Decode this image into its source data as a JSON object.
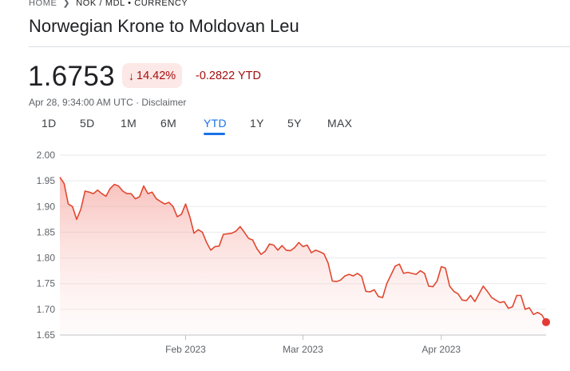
{
  "breadcrumb": {
    "home": "HOME",
    "pair": "NOK / MDL • CURRENCY"
  },
  "title": "Norwegian Krone to Moldovan Leu",
  "price": "1.6753",
  "change_percent": "14.42%",
  "change_ytd": "-0.2822 YTD",
  "timestamp": "Apr 28, 9:34:00 AM UTC",
  "disclaimer": "Disclaimer",
  "tabs": [
    {
      "label": "1D",
      "active": false
    },
    {
      "label": "5D",
      "active": false
    },
    {
      "label": "1M",
      "active": false
    },
    {
      "label": "6M",
      "active": false
    },
    {
      "label": "YTD",
      "active": true
    },
    {
      "label": "1Y",
      "active": false
    },
    {
      "label": "5Y",
      "active": false
    },
    {
      "label": "MAX",
      "active": false
    }
  ],
  "colors": {
    "down": "#a50e0e",
    "line": "#e2472f",
    "accent": "#1a73e8"
  },
  "chart_data": {
    "type": "area",
    "ylim": [
      1.65,
      2.0
    ],
    "yticks": [
      "2.00",
      "1.95",
      "1.90",
      "1.85",
      "1.80",
      "1.75",
      "1.70",
      "1.65"
    ],
    "xticks": [
      {
        "label": "Feb 2023",
        "date": "2023-02-01"
      },
      {
        "label": "Mar 2023",
        "date": "2023-03-01"
      },
      {
        "label": "Apr 2023",
        "date": "2023-04-03"
      }
    ],
    "xlim": [
      "2023-01-02",
      "2023-04-28"
    ],
    "series": [
      {
        "points": [
          [
            "2023-01-02",
            1.957
          ],
          [
            "2023-01-03",
            1.945
          ],
          [
            "2023-01-04",
            1.905
          ],
          [
            "2023-01-05",
            1.9
          ],
          [
            "2023-01-06",
            1.875
          ],
          [
            "2023-01-07",
            1.895
          ],
          [
            "2023-01-08",
            1.93
          ],
          [
            "2023-01-09",
            1.928
          ],
          [
            "2023-01-10",
            1.925
          ],
          [
            "2023-01-11",
            1.932
          ],
          [
            "2023-01-12",
            1.925
          ],
          [
            "2023-01-13",
            1.92
          ],
          [
            "2023-01-14",
            1.935
          ],
          [
            "2023-01-15",
            1.943
          ],
          [
            "2023-01-16",
            1.94
          ],
          [
            "2023-01-17",
            1.93
          ],
          [
            "2023-01-18",
            1.925
          ],
          [
            "2023-01-19",
            1.925
          ],
          [
            "2023-01-20",
            1.915
          ],
          [
            "2023-01-21",
            1.919
          ],
          [
            "2023-01-22",
            1.94
          ],
          [
            "2023-01-23",
            1.925
          ],
          [
            "2023-01-24",
            1.928
          ],
          [
            "2023-01-25",
            1.915
          ],
          [
            "2023-01-26",
            1.91
          ],
          [
            "2023-01-27",
            1.905
          ],
          [
            "2023-01-28",
            1.908
          ],
          [
            "2023-01-29",
            1.9
          ],
          [
            "2023-01-30",
            1.88
          ],
          [
            "2023-01-31",
            1.885
          ],
          [
            "2023-02-01",
            1.905
          ],
          [
            "2023-02-02",
            1.88
          ],
          [
            "2023-02-03",
            1.848
          ],
          [
            "2023-02-04",
            1.855
          ],
          [
            "2023-02-05",
            1.85
          ],
          [
            "2023-02-06",
            1.83
          ],
          [
            "2023-02-07",
            1.815
          ],
          [
            "2023-02-08",
            1.822
          ],
          [
            "2023-02-09",
            1.823
          ],
          [
            "2023-02-10",
            1.846
          ],
          [
            "2023-02-11",
            1.847
          ],
          [
            "2023-02-12",
            1.848
          ],
          [
            "2023-02-13",
            1.852
          ],
          [
            "2023-02-14",
            1.861
          ],
          [
            "2023-02-15",
            1.85
          ],
          [
            "2023-02-16",
            1.838
          ],
          [
            "2023-02-17",
            1.835
          ],
          [
            "2023-02-18",
            1.818
          ],
          [
            "2023-02-19",
            1.807
          ],
          [
            "2023-02-20",
            1.813
          ],
          [
            "2023-02-21",
            1.827
          ],
          [
            "2023-02-22",
            1.825
          ],
          [
            "2023-02-23",
            1.815
          ],
          [
            "2023-02-24",
            1.824
          ],
          [
            "2023-02-25",
            1.815
          ],
          [
            "2023-02-26",
            1.814
          ],
          [
            "2023-02-27",
            1.82
          ],
          [
            "2023-02-28",
            1.83
          ],
          [
            "2023-03-01",
            1.822
          ],
          [
            "2023-03-02",
            1.825
          ],
          [
            "2023-03-03",
            1.81
          ],
          [
            "2023-03-04",
            1.815
          ],
          [
            "2023-03-05",
            1.812
          ],
          [
            "2023-03-06",
            1.808
          ],
          [
            "2023-03-07",
            1.79
          ],
          [
            "2023-03-08",
            1.755
          ],
          [
            "2023-03-09",
            1.754
          ],
          [
            "2023-03-10",
            1.757
          ],
          [
            "2023-03-11",
            1.765
          ],
          [
            "2023-03-12",
            1.768
          ],
          [
            "2023-03-13",
            1.765
          ],
          [
            "2023-03-14",
            1.77
          ],
          [
            "2023-03-15",
            1.764
          ],
          [
            "2023-03-16",
            1.735
          ],
          [
            "2023-03-17",
            1.734
          ],
          [
            "2023-03-18",
            1.738
          ],
          [
            "2023-03-19",
            1.725
          ],
          [
            "2023-03-20",
            1.723
          ],
          [
            "2023-03-21",
            1.75
          ],
          [
            "2023-03-22",
            1.767
          ],
          [
            "2023-03-23",
            1.784
          ],
          [
            "2023-03-24",
            1.788
          ],
          [
            "2023-03-25",
            1.77
          ],
          [
            "2023-03-26",
            1.772
          ],
          [
            "2023-03-27",
            1.77
          ],
          [
            "2023-03-28",
            1.768
          ],
          [
            "2023-03-29",
            1.775
          ],
          [
            "2023-03-30",
            1.77
          ],
          [
            "2023-03-31",
            1.745
          ],
          [
            "2023-04-01",
            1.744
          ],
          [
            "2023-04-02",
            1.755
          ],
          [
            "2023-04-03",
            1.783
          ],
          [
            "2023-04-04",
            1.78
          ],
          [
            "2023-04-05",
            1.745
          ],
          [
            "2023-04-06",
            1.735
          ],
          [
            "2023-04-07",
            1.73
          ],
          [
            "2023-04-08",
            1.718
          ],
          [
            "2023-04-09",
            1.717
          ],
          [
            "2023-04-10",
            1.727
          ],
          [
            "2023-04-11",
            1.715
          ],
          [
            "2023-04-12",
            1.73
          ],
          [
            "2023-04-13",
            1.745
          ],
          [
            "2023-04-14",
            1.735
          ],
          [
            "2023-04-15",
            1.723
          ],
          [
            "2023-04-16",
            1.718
          ],
          [
            "2023-04-17",
            1.713
          ],
          [
            "2023-04-18",
            1.715
          ],
          [
            "2023-04-19",
            1.702
          ],
          [
            "2023-04-20",
            1.705
          ],
          [
            "2023-04-21",
            1.727
          ],
          [
            "2023-04-22",
            1.727
          ],
          [
            "2023-04-23",
            1.7
          ],
          [
            "2023-04-24",
            1.703
          ],
          [
            "2023-04-25",
            1.69
          ],
          [
            "2023-04-26",
            1.694
          ],
          [
            "2023-04-27",
            1.689
          ],
          [
            "2023-04-28",
            1.675
          ]
        ]
      }
    ],
    "grid": "horizontal",
    "last_value": 1.6753
  }
}
